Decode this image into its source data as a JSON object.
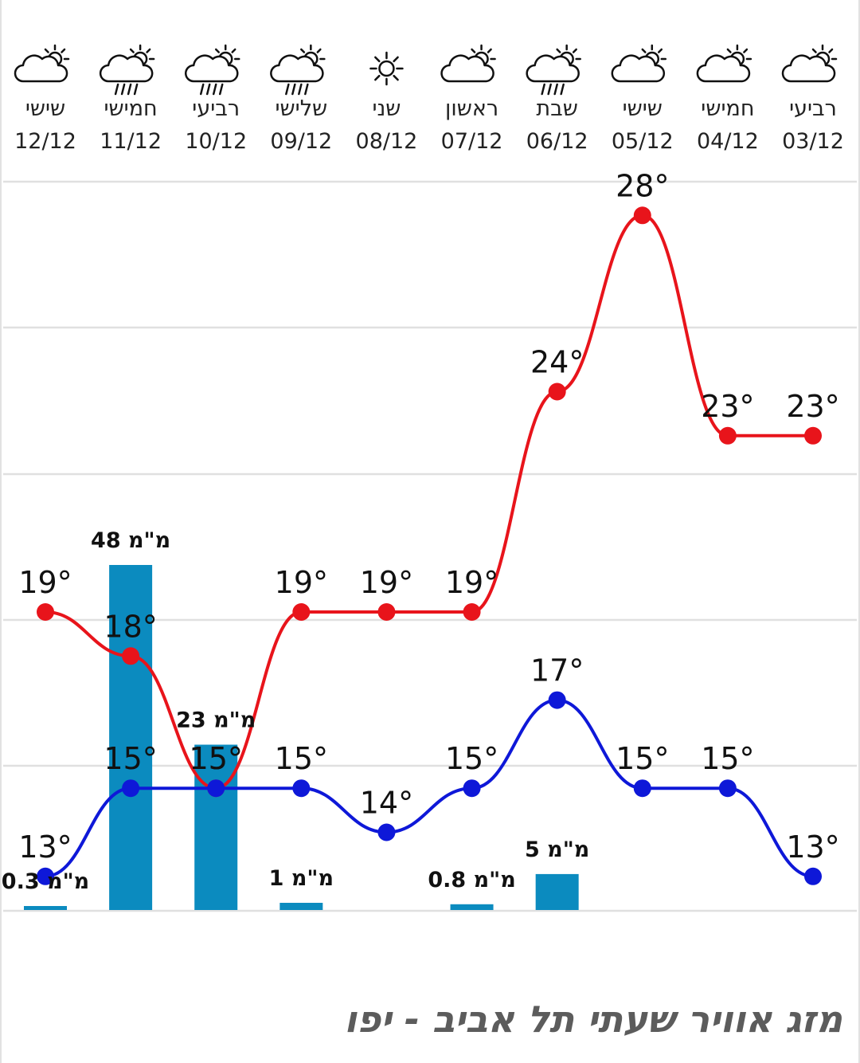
{
  "title": "מזג אוויר שעתי תל אביב - יפו",
  "colors": {
    "high": "#e8141b",
    "low": "#0e18d8",
    "rain": "#0b8bbf",
    "grid": "#e0e0e0"
  },
  "chart_data": {
    "type": "line",
    "categories": [
      "12/12",
      "11/12",
      "10/12",
      "09/12",
      "08/12",
      "07/12",
      "06/12",
      "05/12",
      "04/12",
      "03/12"
    ],
    "day_names": [
      "שישי",
      "חמישי",
      "רביעי",
      "שלישי",
      "שני",
      "ראשון",
      "שבת",
      "שישי",
      "חמישי",
      "רביעי"
    ],
    "icons": [
      "partly-cloudy-icon",
      "rain-showers-icon",
      "rain-showers-icon",
      "rain-showers-icon",
      "sun-icon",
      "partly-cloudy-icon",
      "rain-showers-icon",
      "partly-cloudy-icon",
      "partly-cloudy-icon",
      "partly-cloudy-icon"
    ],
    "series": [
      {
        "key": "high",
        "values": [
          19,
          18,
          15,
          19,
          19,
          19,
          24,
          28,
          23,
          23
        ]
      },
      {
        "key": "low",
        "values": [
          13,
          15,
          15,
          15,
          14,
          15,
          17,
          15,
          15,
          13
        ]
      }
    ],
    "temp_unit": "°",
    "rain": {
      "values": [
        0.3,
        48,
        23,
        1,
        null,
        0.8,
        5,
        null,
        null,
        null
      ],
      "unit": "מ\"מ"
    },
    "xlabel": "",
    "ylabel": "",
    "grid": true
  }
}
